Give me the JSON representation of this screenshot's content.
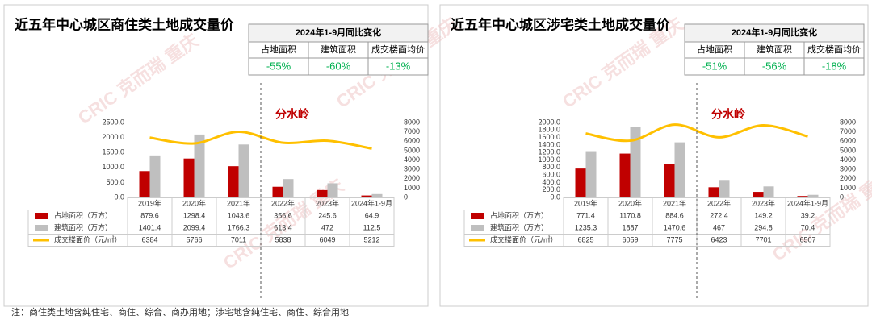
{
  "watermark": "CRIC 克而瑞 重庆",
  "note": "注：商住类土地含纯住宅、商住、综合、商办用地；涉宅地含纯住宅、商住、综合用地",
  "chart_data": [
    {
      "type": "bar",
      "title": "近五年中心城区商住类土地成交量价",
      "annotation": "分水岭",
      "categories": [
        "2019年",
        "2020年",
        "2021年",
        "2022年",
        "2023年",
        "2024年1-9月"
      ],
      "series": [
        {
          "name": "占地面积（万方）",
          "color": "#c00000",
          "values": [
            879.6,
            1298.4,
            1043.6,
            356.6,
            245.6,
            64.9
          ]
        },
        {
          "name": "建筑面积（万方）",
          "color": "#bfbfbf",
          "values": [
            1401.4,
            2099.4,
            1766.3,
            613.4,
            472.0,
            112.5
          ]
        },
        {
          "name": "成交楼面价（元/㎡）",
          "color": "#ffc000",
          "type": "line",
          "axis": "y2",
          "values": [
            6384,
            5766,
            7011,
            5838,
            6049,
            5212
          ]
        }
      ],
      "ylim": [
        0,
        2500
      ],
      "yticks": [
        {
          "value": 0,
          "label": "0.0"
        },
        {
          "value": 500,
          "label": "500.0"
        },
        {
          "value": 1000,
          "label": "1000.0"
        },
        {
          "value": 1500,
          "label": "1500.0"
        },
        {
          "value": 2000,
          "label": "2000.0"
        },
        {
          "value": 2500,
          "label": "2500.0"
        }
      ],
      "y2lim": [
        0,
        8000
      ],
      "y2ticks": [
        0,
        1000,
        2000,
        3000,
        4000,
        5000,
        6000,
        7000,
        8000
      ],
      "summary": {
        "title": "2024年1-9月同比变化",
        "headers": [
          "占地面积",
          "建筑面积",
          "成交楼面均价"
        ],
        "values": [
          -55,
          -60,
          -13
        ],
        "value_labels": [
          "-55%",
          "-60%",
          "-13%"
        ]
      }
    },
    {
      "type": "bar",
      "title": "近五年中心城区涉宅类土地成交量价",
      "annotation": "分水岭",
      "categories": [
        "2019年",
        "2020年",
        "2021年",
        "2022年",
        "2023年",
        "2024年1-9月"
      ],
      "series": [
        {
          "name": "占地面积（万方）",
          "color": "#c00000",
          "values": [
            771.4,
            1170.8,
            884.6,
            272.4,
            149.2,
            39.2
          ]
        },
        {
          "name": "建筑面积（万方）",
          "color": "#bfbfbf",
          "values": [
            1235.3,
            1887.0,
            1470.6,
            467.0,
            294.8,
            70.4
          ]
        },
        {
          "name": "成交楼面价（元/㎡）",
          "color": "#ffc000",
          "type": "line",
          "axis": "y2",
          "values": [
            6825,
            6059,
            7775,
            6423,
            7701,
            6507
          ]
        }
      ],
      "ylim": [
        0,
        2000
      ],
      "yticks": [
        {
          "value": 0,
          "label": "0.0"
        },
        {
          "value": 200,
          "label": "200.0"
        },
        {
          "value": 400,
          "label": "400.0"
        },
        {
          "value": 600,
          "label": "600.0"
        },
        {
          "value": 800,
          "label": "800.0"
        },
        {
          "value": 1000,
          "label": "1000.0"
        },
        {
          "value": 1200,
          "label": "1200.0"
        },
        {
          "value": 1400,
          "label": "1400.0"
        },
        {
          "value": 1600,
          "label": "1600.0"
        },
        {
          "value": 1800,
          "label": "1800.0"
        },
        {
          "value": 2000,
          "label": "2000.0"
        }
      ],
      "y2lim": [
        0,
        8000
      ],
      "y2ticks": [
        0,
        1000,
        2000,
        3000,
        4000,
        5000,
        6000,
        7000,
        8000
      ],
      "summary": {
        "title": "2024年1-9月同比变化",
        "headers": [
          "占地面积",
          "建筑面积",
          "成交楼面均价"
        ],
        "values": [
          -51,
          -56,
          -18
        ],
        "value_labels": [
          "-51%",
          "-56%",
          "-18%"
        ]
      }
    }
  ]
}
